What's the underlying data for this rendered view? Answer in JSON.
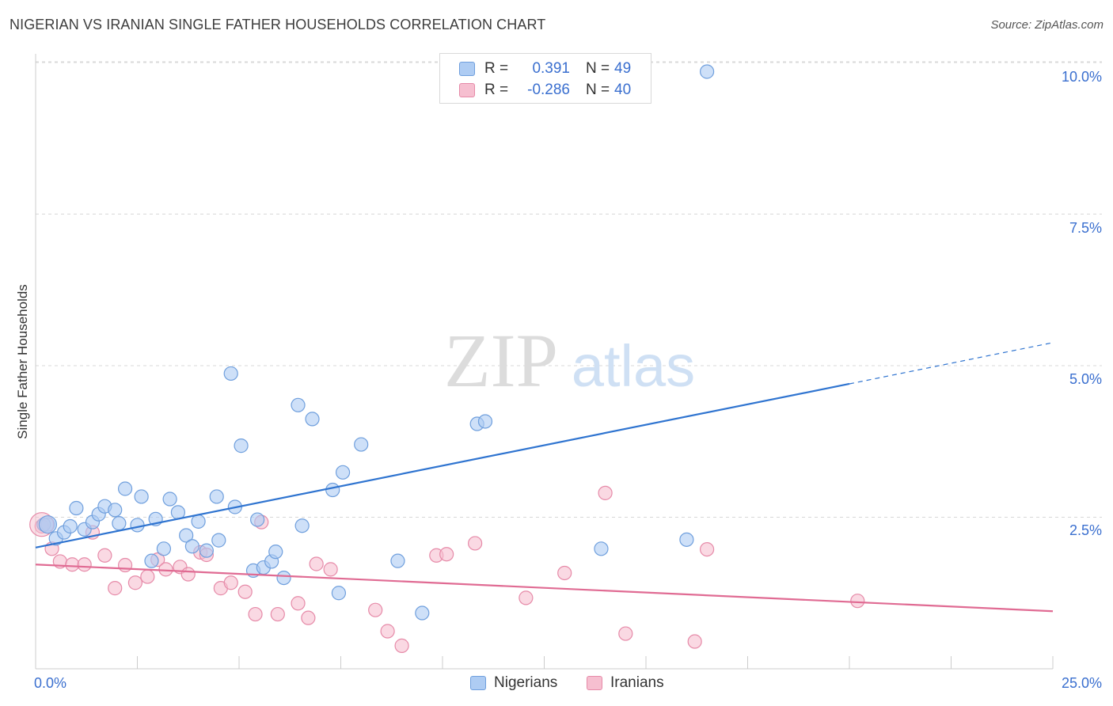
{
  "header": {
    "title": "NIGERIAN VS IRANIAN SINGLE FATHER HOUSEHOLDS CORRELATION CHART",
    "source": "Source: ZipAtlas.com"
  },
  "watermark": {
    "zip": "ZIP",
    "atlas": "atlas"
  },
  "legend": {
    "rows": [
      {
        "r_label": "R =",
        "r_value": "0.391",
        "n_label": "N =",
        "n_value": "49"
      },
      {
        "r_label": "R =",
        "r_value": "-0.286",
        "n_label": "N =",
        "n_value": "40"
      }
    ],
    "bottom": [
      "Nigerians",
      "Iranians"
    ]
  },
  "colors": {
    "nigerians_fill": "#aeccf3",
    "nigerians_stroke": "#6f9fdd",
    "nigerians_line": "#2f74d0",
    "iranians_fill": "#f6bfd0",
    "iranians_stroke": "#e68aa8",
    "iranians_line": "#e06b93",
    "tick_text": "#3a6fcf",
    "grid": "#d8d8d8"
  },
  "chart_data": {
    "type": "scatter",
    "title": "NIGERIAN VS IRANIAN SINGLE FATHER HOUSEHOLDS CORRELATION CHART",
    "xlabel": "",
    "ylabel": "Single Father Households",
    "xlim": [
      0,
      25
    ],
    "ylim": [
      0,
      10.5
    ],
    "x_tick_labels": [
      "0.0%",
      "25.0%"
    ],
    "y_ticks": [
      2.5,
      5.0,
      7.5,
      10.0
    ],
    "y_tick_labels": [
      "2.5%",
      "5.0%",
      "7.5%",
      "10.0%"
    ],
    "grid": true,
    "legend_position": "top-center",
    "series": [
      {
        "name": "Nigerians",
        "r": 0.391,
        "n": 49,
        "trend": {
          "x0": 0,
          "y0": 2.0,
          "x1": 20,
          "y1": 4.7,
          "dashed_to_x": 25,
          "dashed_to_y": 5.38
        },
        "points": [
          [
            0.3,
            2.38
          ],
          [
            0.5,
            2.15
          ],
          [
            0.7,
            2.25
          ],
          [
            0.85,
            2.35
          ],
          [
            1.0,
            2.65
          ],
          [
            1.2,
            2.3
          ],
          [
            1.4,
            2.42
          ],
          [
            1.55,
            2.55
          ],
          [
            1.7,
            2.68
          ],
          [
            1.95,
            2.62
          ],
          [
            2.05,
            2.4
          ],
          [
            2.2,
            2.97
          ],
          [
            2.5,
            2.37
          ],
          [
            2.6,
            2.84
          ],
          [
            2.85,
            1.78
          ],
          [
            2.95,
            2.47
          ],
          [
            3.15,
            1.98
          ],
          [
            3.3,
            2.8
          ],
          [
            3.5,
            2.58
          ],
          [
            3.7,
            2.2
          ],
          [
            3.85,
            2.02
          ],
          [
            4.0,
            2.43
          ],
          [
            4.2,
            1.95
          ],
          [
            4.5,
            2.12
          ],
          [
            4.45,
            2.84
          ],
          [
            4.8,
            4.87
          ],
          [
            4.9,
            2.67
          ],
          [
            5.05,
            3.68
          ],
          [
            5.35,
            1.62
          ],
          [
            5.45,
            2.46
          ],
          [
            5.6,
            1.67
          ],
          [
            5.8,
            1.77
          ],
          [
            5.9,
            1.93
          ],
          [
            6.1,
            1.5
          ],
          [
            6.45,
            4.35
          ],
          [
            6.55,
            2.36
          ],
          [
            6.8,
            4.12
          ],
          [
            7.3,
            2.95
          ],
          [
            7.45,
            1.25
          ],
          [
            7.55,
            3.24
          ],
          [
            8.0,
            3.7
          ],
          [
            8.9,
            1.78
          ],
          [
            9.5,
            0.92
          ],
          [
            10.85,
            4.04
          ],
          [
            11.05,
            4.08
          ],
          [
            13.9,
            1.98
          ],
          [
            16.0,
            2.13
          ],
          [
            16.5,
            9.85
          ],
          [
            0.2,
            2.38
          ]
        ]
      },
      {
        "name": "Iranians",
        "r": -0.286,
        "n": 40,
        "trend": {
          "x0": 0,
          "y0": 1.72,
          "x1": 25,
          "y1": 0.95
        },
        "points": [
          [
            0.15,
            2.35
          ],
          [
            0.4,
            1.98
          ],
          [
            0.6,
            1.77
          ],
          [
            0.9,
            1.72
          ],
          [
            1.2,
            1.72
          ],
          [
            1.4,
            2.25
          ],
          [
            1.7,
            1.87
          ],
          [
            1.95,
            1.33
          ],
          [
            2.2,
            1.71
          ],
          [
            2.45,
            1.42
          ],
          [
            2.75,
            1.52
          ],
          [
            3.0,
            1.8
          ],
          [
            3.2,
            1.64
          ],
          [
            3.55,
            1.68
          ],
          [
            3.75,
            1.56
          ],
          [
            4.05,
            1.92
          ],
          [
            4.2,
            1.88
          ],
          [
            4.55,
            1.33
          ],
          [
            4.8,
            1.42
          ],
          [
            5.15,
            1.27
          ],
          [
            5.4,
            0.9
          ],
          [
            5.55,
            2.42
          ],
          [
            5.95,
            0.9
          ],
          [
            6.45,
            1.08
          ],
          [
            6.7,
            0.84
          ],
          [
            6.9,
            1.73
          ],
          [
            7.25,
            1.64
          ],
          [
            8.35,
            0.97
          ],
          [
            8.65,
            0.62
          ],
          [
            9.0,
            0.38
          ],
          [
            9.85,
            1.87
          ],
          [
            10.1,
            1.89
          ],
          [
            10.8,
            2.07
          ],
          [
            12.05,
            1.17
          ],
          [
            13.0,
            1.58
          ],
          [
            14.0,
            2.9
          ],
          [
            14.5,
            0.58
          ],
          [
            16.2,
            0.45
          ],
          [
            16.5,
            1.97
          ],
          [
            20.2,
            1.12
          ]
        ]
      }
    ]
  }
}
